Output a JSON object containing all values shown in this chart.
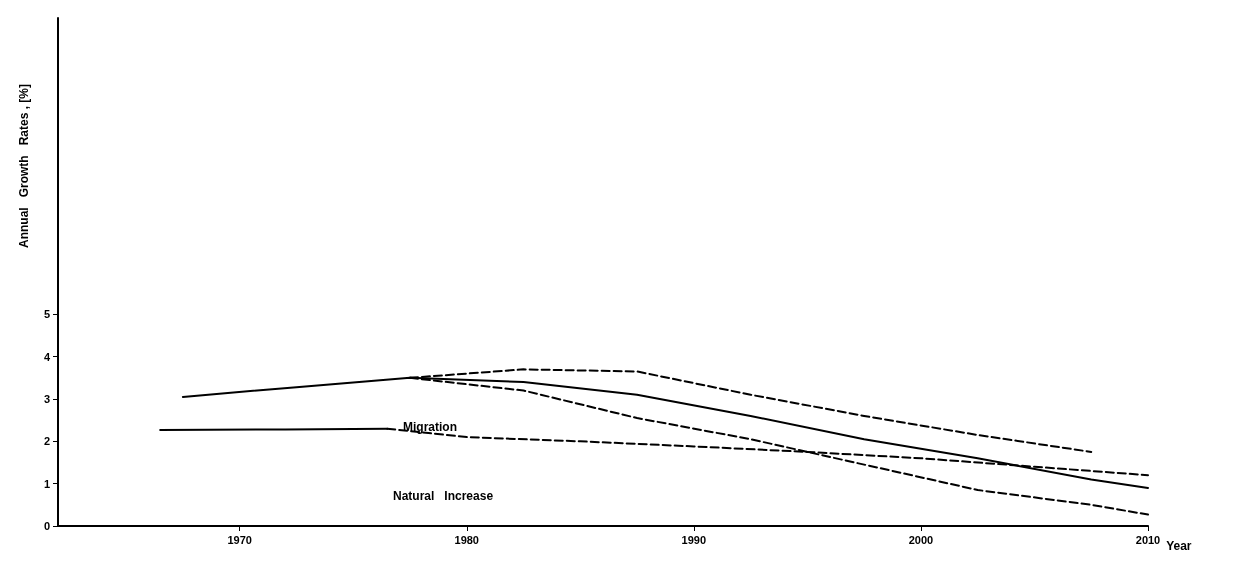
{
  "chart_data": {
    "type": "line",
    "xlabel": "Year",
    "ylabel": "Annual   Growth   Rates , [%]",
    "xlim": [
      1962,
      2010
    ],
    "xticks": [
      1970,
      1980,
      1990,
      2000,
      2010
    ],
    "ylim": [
      0,
      12
    ],
    "yticks": [
      0,
      1,
      2,
      3,
      4,
      5
    ],
    "grid": false,
    "series": [
      {
        "color": "#000000",
        "line_style": "solid",
        "x": [
          1967.5,
          1972.5,
          1977.5,
          1982.5,
          1987.5,
          1992.5,
          1997.5,
          2002.5,
          2007.5,
          2010
        ],
        "values": [
          3.05,
          3.28,
          3.5,
          3.4,
          3.1,
          2.6,
          2.05,
          1.6,
          1.1,
          0.9
        ]
      },
      {
        "color": "#000000",
        "line_style": "dashed",
        "x": [
          1977.5,
          1982.5,
          1987.5,
          1992.5,
          1997.5,
          2002.5,
          2007.5
        ],
        "values": [
          3.5,
          3.7,
          3.65,
          3.1,
          2.6,
          2.15,
          1.75
        ]
      },
      {
        "color": "#000000",
        "line_style": "dashed",
        "x": [
          1977.5,
          1982.5,
          1987.5,
          1992.5,
          1997.5,
          2002.5,
          2007.5,
          2010
        ],
        "values": [
          3.5,
          3.2,
          2.55,
          2.05,
          1.45,
          0.85,
          0.5,
          0.27
        ]
      },
      {
        "color": "#000000",
        "line_style": "solid",
        "x": [
          1966.5,
          1972,
          1976.5
        ],
        "values": [
          2.27,
          2.28,
          2.3
        ]
      },
      {
        "color": "#000000",
        "line_style": "dashed",
        "x": [
          1976.5,
          1980,
          1985,
          1990,
          1995,
          2000,
          2005,
          2010
        ],
        "values": [
          2.3,
          2.1,
          2.0,
          1.88,
          1.75,
          1.6,
          1.4,
          1.2
        ]
      }
    ],
    "annotations": [
      "Migration",
      "Natural   Increase"
    ]
  }
}
